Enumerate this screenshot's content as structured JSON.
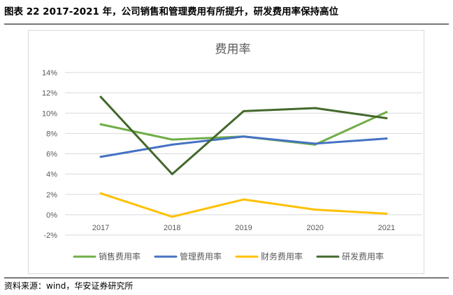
{
  "figure": {
    "title": "图表 22 2017-2021 年，公司销售和管理费用有所提升，研发费用率保持高位",
    "source": "资料来源：wind，华安证券研究所"
  },
  "chart_data": {
    "type": "line",
    "title": "费用率",
    "categories": [
      "2017",
      "2018",
      "2019",
      "2020",
      "2021"
    ],
    "y_ticks": [
      "14%",
      "12%",
      "10%",
      "8%",
      "6%",
      "4%",
      "2%",
      "0%",
      "-2%"
    ],
    "ylim": [
      -2,
      14
    ],
    "y_unit": "%",
    "grid": true,
    "legend_position": "bottom",
    "series": [
      {
        "name": "销售费用率",
        "color": "#70ad47",
        "values": [
          8.9,
          7.4,
          7.7,
          6.9,
          10.1
        ]
      },
      {
        "name": "管理费用率",
        "color": "#4472c4",
        "values": [
          5.7,
          6.9,
          7.7,
          7.0,
          7.5
        ]
      },
      {
        "name": "财务费用率",
        "color": "#ffc000",
        "values": [
          2.1,
          -0.2,
          1.5,
          0.5,
          0.1
        ]
      },
      {
        "name": "研发费用率",
        "color": "#43682b",
        "values": [
          11.6,
          4.0,
          10.2,
          10.5,
          9.5
        ]
      }
    ]
  }
}
